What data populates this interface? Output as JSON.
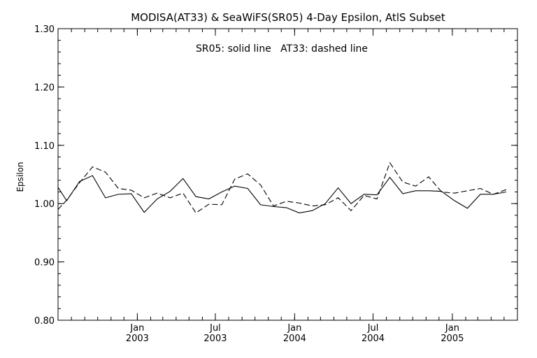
{
  "chart_data": {
    "type": "line",
    "title": "MODISA(AT33) & SeaWiFS(SR05) 4-Day Epsilon, AtlS Subset",
    "annotation": "SR05: solid line   AT33: dashed line",
    "ylabel": "Epsilon",
    "xlabel": "",
    "ylim": [
      0.8,
      1.3
    ],
    "xlim": [
      "2002-07-01",
      "2005-06-01"
    ],
    "grid": false,
    "legend": "none",
    "y_ticks": [
      {
        "value": 0.8,
        "label": "0.80"
      },
      {
        "value": 0.9,
        "label": "0.90"
      },
      {
        "value": 1.0,
        "label": "1.00"
      },
      {
        "value": 1.1,
        "label": "1.10"
      },
      {
        "value": 1.2,
        "label": "1.20"
      },
      {
        "value": 1.3,
        "label": "1.30"
      }
    ],
    "x_ticks": [
      {
        "date": "2003-01-01",
        "month": "Jan",
        "year": "2003"
      },
      {
        "date": "2003-07-01",
        "month": "Jul",
        "year": "2003"
      },
      {
        "date": "2004-01-01",
        "month": "Jan",
        "year": "2004"
      },
      {
        "date": "2004-07-01",
        "month": "Jul",
        "year": "2004"
      },
      {
        "date": "2005-01-01",
        "month": "Jan",
        "year": "2005"
      }
    ],
    "series": [
      {
        "name": "SR05",
        "style": "solid",
        "color": "#000000",
        "points": [
          [
            "2002-07-01",
            1.028
          ],
          [
            "2002-07-21",
            1.005
          ],
          [
            "2002-08-20",
            1.038
          ],
          [
            "2002-09-19",
            1.048
          ],
          [
            "2002-10-19",
            1.01
          ],
          [
            "2002-11-18",
            1.016
          ],
          [
            "2002-12-18",
            1.017
          ],
          [
            "2003-01-17",
            0.985
          ],
          [
            "2003-02-16",
            1.008
          ],
          [
            "2003-03-18",
            1.021
          ],
          [
            "2003-04-17",
            1.043
          ],
          [
            "2003-05-17",
            1.012
          ],
          [
            "2003-06-16",
            1.008
          ],
          [
            "2003-07-16",
            1.02
          ],
          [
            "2003-08-15",
            1.03
          ],
          [
            "2003-09-14",
            1.026
          ],
          [
            "2003-10-14",
            0.998
          ],
          [
            "2003-11-13",
            0.995
          ],
          [
            "2003-12-13",
            0.993
          ],
          [
            "2004-01-12",
            0.984
          ],
          [
            "2004-02-11",
            0.988
          ],
          [
            "2004-03-12",
            1.0
          ],
          [
            "2004-04-11",
            1.027
          ],
          [
            "2004-05-11",
            1.0
          ],
          [
            "2004-06-10",
            1.016
          ],
          [
            "2004-07-10",
            1.015
          ],
          [
            "2004-08-09",
            1.045
          ],
          [
            "2004-09-08",
            1.017
          ],
          [
            "2004-10-08",
            1.022
          ],
          [
            "2004-11-07",
            1.022
          ],
          [
            "2004-12-07",
            1.021
          ],
          [
            "2005-01-06",
            1.005
          ],
          [
            "2005-02-05",
            0.992
          ],
          [
            "2005-03-07",
            1.016
          ],
          [
            "2005-04-06",
            1.016
          ],
          [
            "2005-05-06",
            1.02
          ]
        ]
      },
      {
        "name": "AT33",
        "style": "dashed",
        "color": "#000000",
        "points": [
          [
            "2002-07-01",
            0.99
          ],
          [
            "2002-07-21",
            1.006
          ],
          [
            "2002-08-20",
            1.036
          ],
          [
            "2002-09-19",
            1.063
          ],
          [
            "2002-10-19",
            1.054
          ],
          [
            "2002-11-18",
            1.026
          ],
          [
            "2002-12-18",
            1.023
          ],
          [
            "2003-01-17",
            1.01
          ],
          [
            "2003-02-16",
            1.018
          ],
          [
            "2003-03-18",
            1.01
          ],
          [
            "2003-04-17",
            1.018
          ],
          [
            "2003-05-17",
            0.984
          ],
          [
            "2003-06-16",
            0.999
          ],
          [
            "2003-07-16",
            0.998
          ],
          [
            "2003-08-15",
            1.042
          ],
          [
            "2003-09-14",
            1.051
          ],
          [
            "2003-10-14",
            1.032
          ],
          [
            "2003-11-13",
            0.996
          ],
          [
            "2003-12-13",
            1.004
          ],
          [
            "2004-01-12",
            1.001
          ],
          [
            "2004-02-11",
            0.996
          ],
          [
            "2004-03-12",
            0.998
          ],
          [
            "2004-04-11",
            1.01
          ],
          [
            "2004-05-11",
            0.988
          ],
          [
            "2004-06-10",
            1.014
          ],
          [
            "2004-07-10",
            1.008
          ],
          [
            "2004-08-09",
            1.07
          ],
          [
            "2004-09-08",
            1.037
          ],
          [
            "2004-10-08",
            1.03
          ],
          [
            "2004-11-07",
            1.046
          ],
          [
            "2004-12-07",
            1.02
          ],
          [
            "2005-01-06",
            1.018
          ],
          [
            "2005-02-05",
            1.022
          ],
          [
            "2005-03-07",
            1.026
          ],
          [
            "2005-04-06",
            1.016
          ],
          [
            "2005-05-06",
            1.024
          ]
        ]
      }
    ]
  }
}
